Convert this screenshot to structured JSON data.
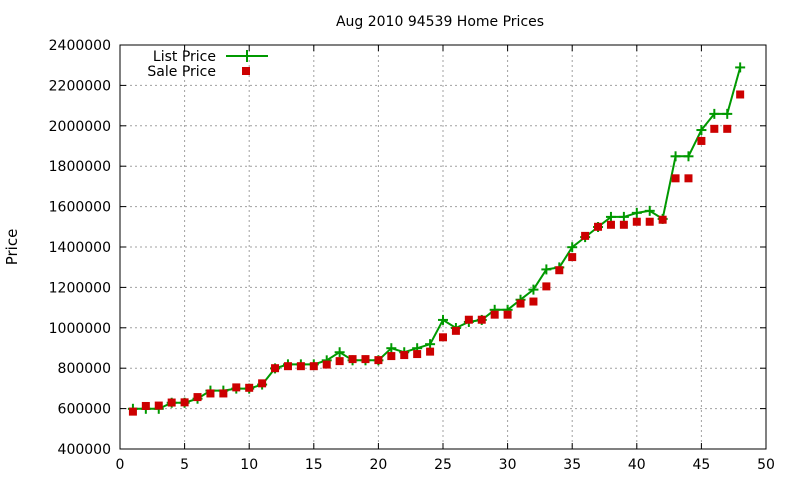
{
  "chart_data": {
    "type": "line",
    "title": "Aug 2010 94539 Home Prices",
    "xlabel": "",
    "ylabel": "Price",
    "xlim": [
      0,
      50
    ],
    "ylim": [
      400000,
      2400000
    ],
    "xticks": [
      0,
      5,
      10,
      15,
      20,
      25,
      30,
      35,
      40,
      45,
      50
    ],
    "yticks": [
      400000,
      600000,
      800000,
      1000000,
      1200000,
      1400000,
      1600000,
      1800000,
      2000000,
      2200000,
      2400000
    ],
    "grid": true,
    "legend_position": "top-left",
    "x": [
      1,
      2,
      3,
      4,
      5,
      6,
      7,
      8,
      9,
      10,
      11,
      12,
      13,
      14,
      15,
      16,
      17,
      18,
      19,
      20,
      21,
      22,
      23,
      24,
      25,
      26,
      27,
      28,
      29,
      30,
      31,
      32,
      33,
      34,
      35,
      36,
      37,
      38,
      39,
      40,
      41,
      42,
      43,
      44,
      45,
      46,
      47,
      48
    ],
    "series": [
      {
        "name": "List Price",
        "style": "line-cross",
        "color": "#009900",
        "values": [
          599000,
          599000,
          599000,
          629000,
          629000,
          649000,
          689000,
          689000,
          699000,
          699000,
          719000,
          799000,
          819000,
          819000,
          819000,
          839000,
          879000,
          839000,
          839000,
          839000,
          899000,
          879000,
          899000,
          919000,
          1039000,
          999000,
          1029000,
          1039000,
          1089000,
          1089000,
          1139000,
          1189000,
          1289000,
          1299000,
          1399000,
          1449000,
          1499000,
          1549000,
          1549000,
          1569000,
          1579000,
          1539000,
          1849000,
          1849000,
          1979000,
          2059000,
          2059000,
          2289000
        ]
      },
      {
        "name": "Sale Price",
        "style": "square",
        "color": "#cc0000",
        "values": [
          585000,
          613000,
          615000,
          630000,
          631000,
          657000,
          675000,
          675000,
          705000,
          703000,
          725000,
          800000,
          810000,
          810000,
          810000,
          818000,
          835000,
          845000,
          845000,
          840000,
          860000,
          865000,
          870000,
          882000,
          953000,
          985000,
          1040000,
          1040000,
          1065000,
          1065000,
          1120000,
          1130000,
          1205000,
          1285000,
          1350000,
          1455000,
          1500000,
          1510000,
          1510000,
          1525000,
          1525000,
          1535000,
          1740000,
          1740000,
          1925000,
          1985000,
          1985000,
          2155000
        ]
      }
    ]
  }
}
